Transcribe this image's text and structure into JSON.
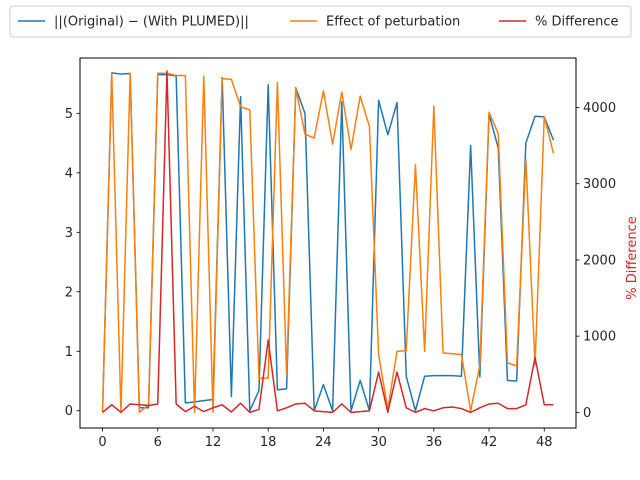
{
  "chart_data": {
    "type": "line",
    "x": [
      0,
      1,
      2,
      3,
      4,
      5,
      6,
      7,
      8,
      9,
      10,
      11,
      12,
      13,
      14,
      15,
      16,
      17,
      18,
      19,
      20,
      21,
      22,
      23,
      24,
      25,
      26,
      27,
      28,
      29,
      30,
      31,
      32,
      33,
      34,
      35,
      36,
      37,
      38,
      39,
      40,
      41,
      42,
      43,
      44,
      45,
      46,
      47,
      48,
      49
    ],
    "xticks": [
      0,
      6,
      12,
      18,
      24,
      30,
      36,
      42,
      48
    ],
    "xlim": [
      -2.45,
      51.45
    ],
    "y_left": {
      "label": "",
      "lim": [
        -0.29,
        5.93
      ],
      "ticks": [
        0,
        1,
        2,
        3,
        4,
        5
      ]
    },
    "y_right": {
      "label": "% Difference",
      "color": "#d62728",
      "lim": [
        -205,
        4650
      ],
      "ticks": [
        0,
        1000,
        2000,
        3000,
        4000
      ]
    },
    "series": [
      {
        "name": "||(Original) − (With PLUMED)||",
        "axis": "left",
        "color": "#1f77b4",
        "values": [
          0.0,
          5.68,
          5.66,
          5.67,
          0.05,
          0.05,
          5.65,
          5.65,
          5.63,
          0.13,
          0.15,
          0.17,
          0.19,
          5.6,
          0.24,
          5.28,
          0.0,
          0.34,
          5.48,
          0.35,
          0.37,
          5.43,
          5.0,
          0.0,
          0.44,
          0.0,
          5.19,
          0.0,
          0.51,
          0.0,
          5.22,
          4.64,
          5.18,
          0.58,
          0.0,
          0.58,
          0.59,
          0.59,
          0.59,
          0.58,
          4.46,
          0.57,
          4.98,
          4.42,
          0.51,
          0.5,
          4.5,
          4.95,
          4.94,
          4.55
        ]
      },
      {
        "name": "Effect of peturbation",
        "axis": "right",
        "color": "#ff7f0e",
        "values": [
          0,
          4450,
          0,
          4450,
          0,
          100,
          4450,
          4450,
          4420,
          4420,
          0,
          4410,
          0,
          4380,
          4370,
          4010,
          3970,
          450,
          450,
          4330,
          500,
          4250,
          3650,
          3600,
          4220,
          3520,
          4200,
          3450,
          4150,
          3750,
          760,
          40,
          800,
          810,
          3250,
          800,
          4020,
          780,
          770,
          760,
          20,
          620,
          3940,
          3660,
          650,
          610,
          3320,
          620,
          3880,
          3400
        ]
      },
      {
        "name": "% Difference",
        "axis": "right",
        "color": "#d62728",
        "values": [
          0,
          100,
          0,
          110,
          100,
          90,
          110,
          4480,
          110,
          10,
          80,
          10,
          60,
          100,
          5,
          120,
          0,
          40,
          950,
          20,
          60,
          110,
          120,
          20,
          10,
          0,
          110,
          0,
          10,
          20,
          530,
          0,
          530,
          60,
          0,
          50,
          20,
          60,
          70,
          50,
          0,
          60,
          110,
          120,
          50,
          50,
          100,
          720,
          100,
          100
        ]
      }
    ],
    "legend": {
      "placement": "top",
      "columns": 3
    }
  }
}
